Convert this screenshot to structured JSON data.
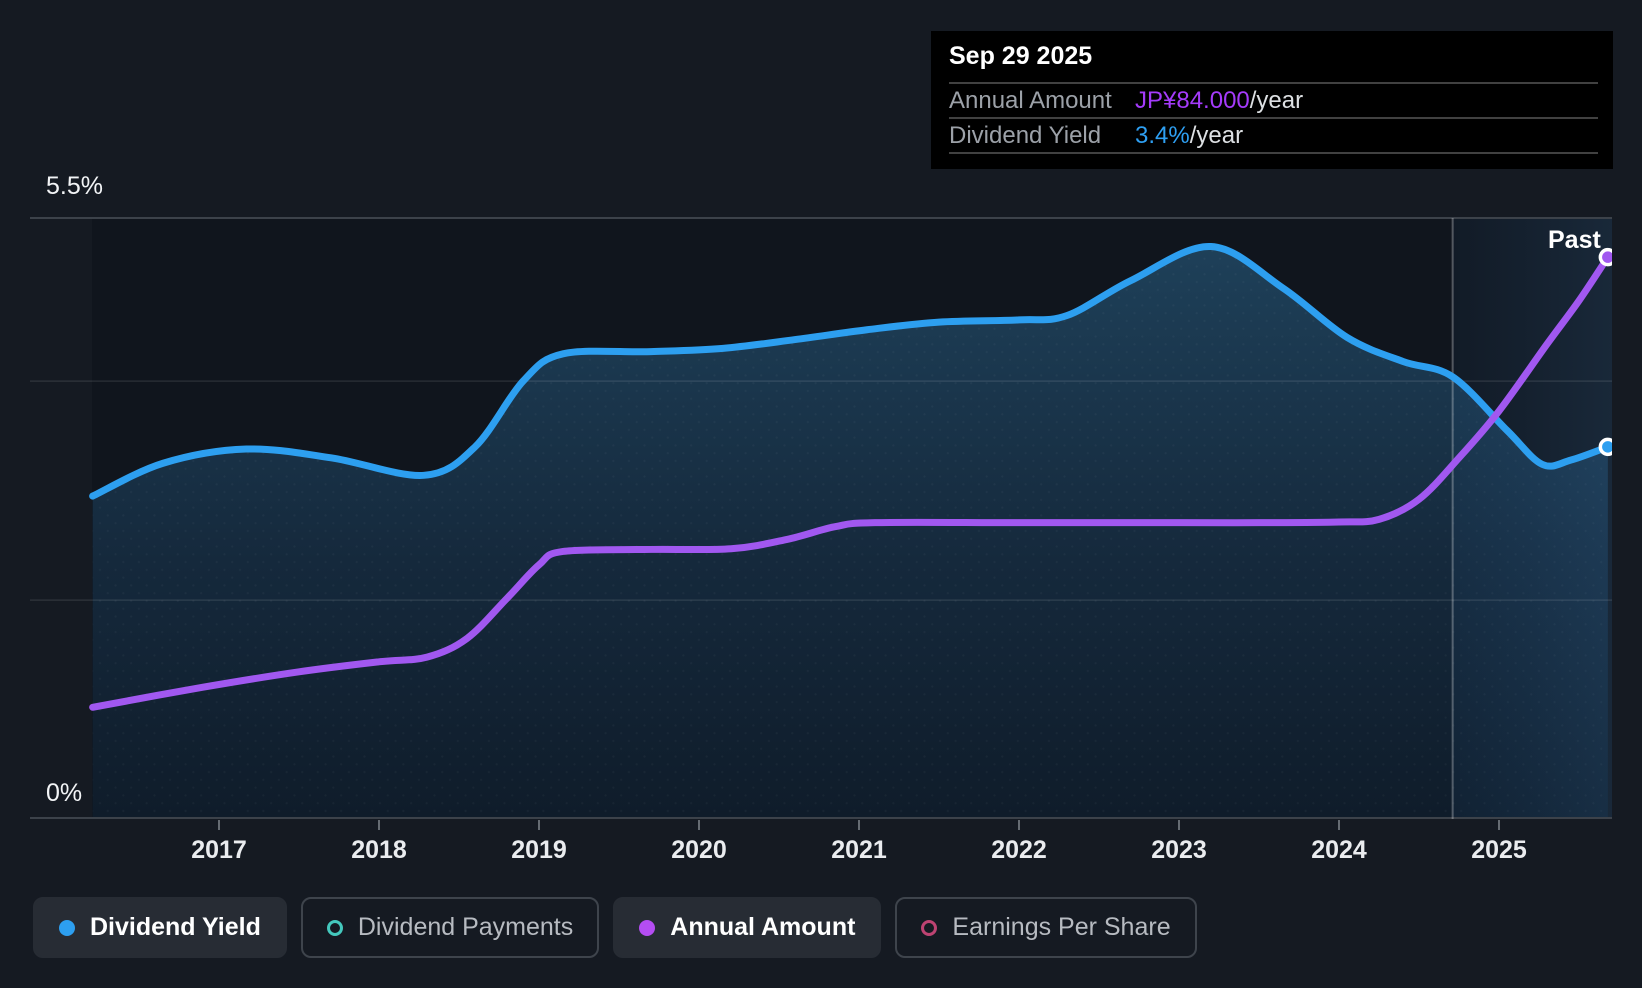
{
  "page": {
    "bg": "#151A22"
  },
  "tooltip": {
    "date": "Sep 29 2025",
    "rows": [
      {
        "label": "Annual Amount",
        "value": "JP¥84.000",
        "suffix": "/year",
        "value_color": "#A43BFA"
      },
      {
        "label": "Dividend Yield",
        "value": "3.4%",
        "suffix": "/year",
        "value_color": "#2E9FF2"
      }
    ]
  },
  "y_axis": {
    "top_label": "5.5%",
    "bottom_label": "0%"
  },
  "past_label": "Past",
  "legend": [
    {
      "label": "Dividend Yield",
      "color": "#2D9FF0",
      "style": "filled",
      "active": true
    },
    {
      "label": "Dividend Payments",
      "color": "#44C8BD",
      "style": "ring",
      "active": false
    },
    {
      "label": "Annual Amount",
      "color": "#B44DF2",
      "style": "filled",
      "active": true
    },
    {
      "label": "Earnings Per Share",
      "color": "#BD4372",
      "style": "ring",
      "active": false
    }
  ],
  "chart_data": {
    "type": "line",
    "x_domain": [
      2016.206,
      2025.71
    ],
    "x_tick_years": [
      2017,
      2018,
      2019,
      2020,
      2021,
      2022,
      2023,
      2024,
      2025
    ],
    "divider_x": 2024.71,
    "past_region": {
      "from": 2024.71,
      "to": 2025.71,
      "label": "Past"
    },
    "y_axes": {
      "yield": {
        "unit": "%",
        "min": 0,
        "max": 5.5,
        "gridlines": [
          0,
          2,
          4,
          5.5
        ],
        "labeled": [
          "5.5%",
          "0%"
        ]
      },
      "amount": {
        "unit": "JP¥",
        "min": 0,
        "max": 90,
        "gridlines": []
      }
    },
    "series": [
      {
        "name": "Dividend Yield",
        "axis": "yield",
        "unit": "%",
        "color": "#2D9FF0",
        "area": true,
        "end_dot": true,
        "end_value_label": "3.4%/year",
        "points": [
          [
            2016.21,
            2.95
          ],
          [
            2016.65,
            3.25
          ],
          [
            2017.17,
            3.38
          ],
          [
            2017.7,
            3.3
          ],
          [
            2018.28,
            3.14
          ],
          [
            2018.6,
            3.4
          ],
          [
            2018.9,
            4.0
          ],
          [
            2019.15,
            4.25
          ],
          [
            2019.7,
            4.27
          ],
          [
            2020.15,
            4.3
          ],
          [
            2020.6,
            4.38
          ],
          [
            2021.05,
            4.47
          ],
          [
            2021.5,
            4.54
          ],
          [
            2022.0,
            4.56
          ],
          [
            2022.3,
            4.6
          ],
          [
            2022.7,
            4.92
          ],
          [
            2023.2,
            5.23
          ],
          [
            2023.65,
            4.85
          ],
          [
            2024.05,
            4.4
          ],
          [
            2024.4,
            4.18
          ],
          [
            2024.71,
            4.04
          ],
          [
            2025.05,
            3.55
          ],
          [
            2025.27,
            3.24
          ],
          [
            2025.45,
            3.28
          ],
          [
            2025.68,
            3.4
          ]
        ]
      },
      {
        "name": "Annual Amount",
        "axis": "amount",
        "unit": "JP¥",
        "color": "#A158F0",
        "area": false,
        "end_dot": true,
        "end_value_label": "JP¥84.000/year",
        "points": [
          [
            2016.21,
            16.7
          ],
          [
            2016.9,
            19.7
          ],
          [
            2017.5,
            22.0
          ],
          [
            2018.0,
            23.5
          ],
          [
            2018.3,
            24.2
          ],
          [
            2018.55,
            27.0
          ],
          [
            2018.8,
            33.0
          ],
          [
            2019.0,
            38.0
          ],
          [
            2019.15,
            40.0
          ],
          [
            2019.7,
            40.3
          ],
          [
            2020.2,
            40.4
          ],
          [
            2020.55,
            41.8
          ],
          [
            2020.85,
            43.7
          ],
          [
            2021.1,
            44.3
          ],
          [
            2022.0,
            44.3
          ],
          [
            2023.0,
            44.3
          ],
          [
            2023.5,
            44.3
          ],
          [
            2024.0,
            44.4
          ],
          [
            2024.25,
            44.8
          ],
          [
            2024.5,
            47.8
          ],
          [
            2024.75,
            54.0
          ],
          [
            2025.0,
            61.0
          ],
          [
            2025.3,
            71.0
          ],
          [
            2025.5,
            77.5
          ],
          [
            2025.68,
            84.0
          ]
        ]
      }
    ],
    "legend_position": "bottom"
  },
  "colors": {
    "plot_bg": "#10151D",
    "grid_strong": "#3C424A",
    "grid_soft": "rgba(255,255,255,0.10)",
    "divider": "rgba(255,255,255,0.28)",
    "area_top": "#1E4059",
    "area_mid": "#15293C",
    "area_bottom": "#0F1C2A",
    "band_left": "rgba(56,140,220,0.05)",
    "band_right": "rgba(84,170,245,0.13)"
  }
}
